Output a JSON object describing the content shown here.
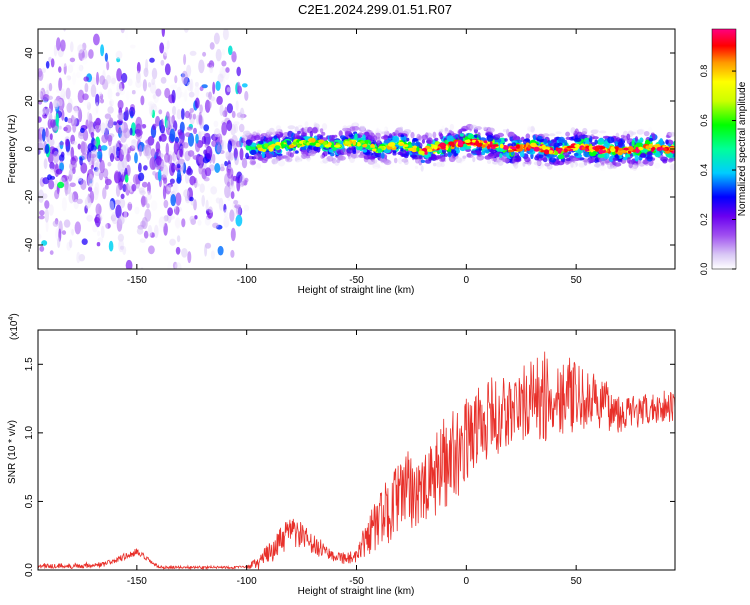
{
  "title": "C2E1.2024.299.01.51.R07",
  "chart_data": [
    {
      "type": "heatmap",
      "xlabel": "Height of straight line (km)",
      "ylabel": "Frequency (Hz)",
      "xlim": [
        -195,
        95
      ],
      "ylim": [
        -50,
        50
      ],
      "xticks": [
        -150,
        -100,
        -50,
        0,
        50
      ],
      "yticks": [
        -40,
        -20,
        0,
        20,
        40
      ],
      "colorbar": {
        "label": "Normalized spectral amplitude",
        "range": [
          0,
          0.97
        ],
        "ticks": [
          0.0,
          0.2,
          0.4,
          0.6,
          0.8
        ],
        "colormap": [
          "#ffffff",
          "#d9c8f5",
          "#a050f0",
          "#6a00f0",
          "#0000ff",
          "#00ccff",
          "#00ff99",
          "#00ff00",
          "#ccff00",
          "#ffff00",
          "#ff9900",
          "#ff0000",
          "#ff0080"
        ]
      },
      "bands": [
        {
          "x": [
            -195,
            -100
          ],
          "center_hz": 0,
          "spread_hz": 50,
          "level": 0.3,
          "note_style": "scattered"
        },
        {
          "x": [
            -100,
            95
          ],
          "center_hz": 0,
          "spread_hz": 6,
          "level": 0.5,
          "note_style": "narrow"
        }
      ],
      "hot_ridge": [
        {
          "x": -95,
          "y": 0
        },
        {
          "x": -80,
          "y": 2
        },
        {
          "x": -70,
          "y": 3
        },
        {
          "x": -60,
          "y": 1
        },
        {
          "x": -50,
          "y": 3
        },
        {
          "x": -40,
          "y": 0
        },
        {
          "x": -30,
          "y": 2
        },
        {
          "x": -20,
          "y": -1
        },
        {
          "x": -10,
          "y": 1
        },
        {
          "x": 0,
          "y": 3
        },
        {
          "x": 10,
          "y": 2
        },
        {
          "x": 20,
          "y": 0
        },
        {
          "x": 30,
          "y": 1
        },
        {
          "x": 40,
          "y": -1
        },
        {
          "x": 50,
          "y": 1
        },
        {
          "x": 60,
          "y": 0
        },
        {
          "x": 70,
          "y": -1
        },
        {
          "x": 80,
          "y": 0
        },
        {
          "x": 90,
          "y": 1
        }
      ]
    },
    {
      "type": "line",
      "xlabel": "Height of straight line (km)",
      "ylabel": "SNR (10 * v/v)",
      "yscale_label": "(x10",
      "yscale_exp": "4",
      "xlim": [
        -195,
        95
      ],
      "ylim": [
        0,
        1.75
      ],
      "xticks": [
        -150,
        -100,
        -50,
        0,
        50
      ],
      "yticks": [
        0.0,
        0.5,
        1.0,
        1.5
      ],
      "series": [
        {
          "color": "#e8302a",
          "x": [
            -195,
            -180,
            -165,
            -150,
            -140,
            -125,
            -110,
            -100,
            -95,
            -90,
            -85,
            -80,
            -75,
            -70,
            -65,
            -60,
            -55,
            -50,
            -45,
            -40,
            -35,
            -30,
            -25,
            -20,
            -15,
            -10,
            -5,
            0,
            5,
            10,
            15,
            20,
            25,
            30,
            35,
            40,
            45,
            50,
            60,
            70,
            80,
            90,
            95
          ],
          "y": [
            0.03,
            0.03,
            0.04,
            0.13,
            0.02,
            0.02,
            0.02,
            0.02,
            0.05,
            0.12,
            0.2,
            0.28,
            0.25,
            0.18,
            0.15,
            0.1,
            0.09,
            0.08,
            0.25,
            0.35,
            0.45,
            0.55,
            0.6,
            0.55,
            0.65,
            0.8,
            0.85,
            0.95,
            1.05,
            1.1,
            1.12,
            1.15,
            1.2,
            1.25,
            1.25,
            1.25,
            1.3,
            1.25,
            1.22,
            1.15,
            1.15,
            1.2,
            1.2
          ],
          "noise_amplitude": [
            0.02,
            0.02,
            0.02,
            0.03,
            0.01,
            0.01,
            0.01,
            0.01,
            0.05,
            0.08,
            0.1,
            0.12,
            0.1,
            0.08,
            0.06,
            0.04,
            0.05,
            0.06,
            0.15,
            0.2,
            0.25,
            0.25,
            0.3,
            0.25,
            0.3,
            0.35,
            0.35,
            0.3,
            0.3,
            0.3,
            0.3,
            0.28,
            0.28,
            0.3,
            0.35,
            0.3,
            0.3,
            0.25,
            0.2,
            0.15,
            0.12,
            0.12,
            0.12
          ]
        }
      ]
    }
  ]
}
